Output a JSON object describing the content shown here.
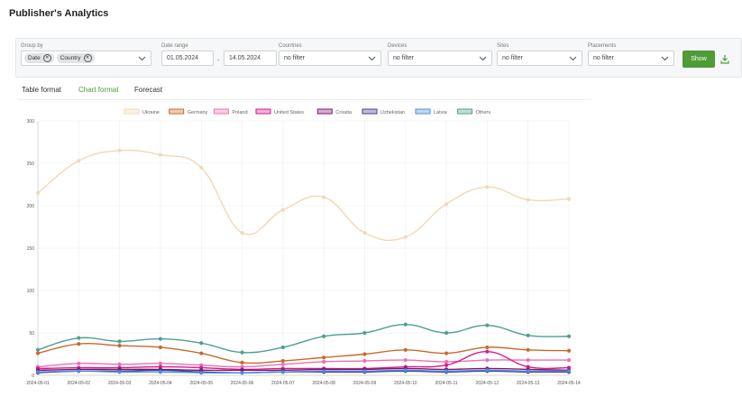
{
  "page": {
    "title": "Publisher's Analytics"
  },
  "filters": {
    "group_by": {
      "label": "Group by",
      "chips": [
        "Date",
        "Country"
      ]
    },
    "date_range": {
      "label": "Date range",
      "from": "01.05.2024",
      "separator": "-",
      "to": "14.05.2024"
    },
    "countries": {
      "label": "Countries",
      "value": "no filter"
    },
    "devices": {
      "label": "Devices",
      "value": "no filter"
    },
    "sites": {
      "label": "Sites",
      "value": "no filter"
    },
    "placements": {
      "label": "Placements",
      "value": "no filter"
    },
    "show_label": "Show",
    "download_icon": "download-icon"
  },
  "tabs": [
    {
      "label": "Table format",
      "active": false
    },
    {
      "label": "Chart format",
      "active": true
    },
    {
      "label": "Forecast",
      "active": false
    }
  ],
  "colors": {
    "accent": "#4f9b35"
  },
  "chart_data": {
    "type": "line",
    "title": "",
    "xlabel": "",
    "ylabel": "",
    "ylim": [
      0,
      300
    ],
    "yticks": [
      0,
      50,
      100,
      150,
      200,
      250,
      300
    ],
    "grid": true,
    "legend_position": "top",
    "categories": [
      "2024-05-01",
      "2024-05-02",
      "2024-05-03",
      "2024-05-04",
      "2024-05-05",
      "2024-05-06",
      "2024-05-07",
      "2024-05-08",
      "2024-05-09",
      "2024-05-10",
      "2024-05-11",
      "2024-05-12",
      "2024-05-13",
      "2024-05-14"
    ],
    "series": [
      {
        "name": "Ukraine",
        "color": "#f0d9b5",
        "values": [
          215,
          253,
          265,
          260,
          245,
          168,
          195,
          210,
          168,
          163,
          202,
          222,
          207,
          208
        ]
      },
      {
        "name": "Germany",
        "color": "#c86a2a",
        "values": [
          26,
          37,
          35,
          33,
          26,
          15,
          17,
          21,
          25,
          30,
          26,
          33,
          30,
          29
        ]
      },
      {
        "name": "Poland",
        "color": "#ee6fb3",
        "values": [
          10,
          14,
          13,
          14,
          12,
          10,
          13,
          16,
          17,
          18,
          16,
          18,
          18,
          18
        ]
      },
      {
        "name": "United States",
        "color": "#d61c8a",
        "values": [
          8,
          9,
          9,
          10,
          9,
          7,
          8,
          8,
          8,
          10,
          12,
          28,
          10,
          9
        ]
      },
      {
        "name": "Croatia",
        "color": "#7a1a6e",
        "values": [
          6,
          7,
          7,
          7,
          6,
          6,
          6,
          7,
          7,
          8,
          7,
          8,
          7,
          6
        ]
      },
      {
        "name": "Uzbekistan",
        "color": "#4a3c8c",
        "values": [
          3,
          5,
          5,
          6,
          4,
          3,
          4,
          4,
          4,
          5,
          4,
          5,
          4,
          4
        ]
      },
      {
        "name": "Latvia",
        "color": "#4a90d9",
        "values": [
          4,
          5,
          4,
          4,
          3,
          3,
          4,
          5,
          5,
          6,
          5,
          6,
          5,
          5
        ]
      },
      {
        "name": "Others",
        "color": "#4e9f92",
        "values": [
          30,
          44,
          40,
          43,
          38,
          27,
          33,
          46,
          50,
          60,
          50,
          59,
          47,
          46
        ]
      }
    ]
  }
}
